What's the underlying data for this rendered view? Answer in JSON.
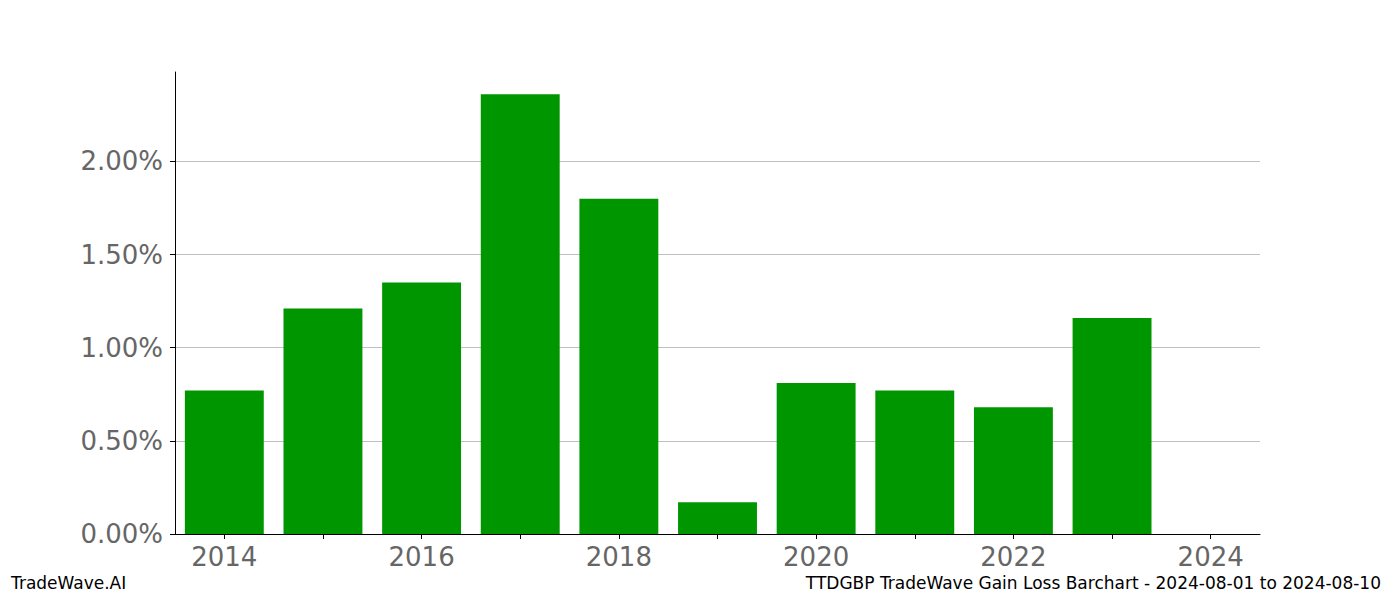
{
  "chart_data": {
    "type": "bar",
    "title": "TTDGBP TradeWave Gain Loss Barchart - 2024-08-01 to 2024-08-10",
    "annotations": [
      "TradeWave.AI"
    ],
    "categories": [
      "2014",
      null,
      "2016",
      null,
      "2018",
      null,
      "2020",
      null,
      "2022",
      null,
      "2024"
    ],
    "values": [
      0.77,
      1.21,
      1.35,
      2.36,
      1.8,
      0.17,
      0.81,
      0.77,
      0.68,
      1.16,
      null
    ],
    "color": "#009600",
    "ylim": [
      0,
      2.48
    ],
    "yticks": [
      {
        "value": 0,
        "label": "0.00%"
      },
      {
        "value": 0.5,
        "label": "0.50%"
      },
      {
        "value": 1,
        "label": "1.00%"
      },
      {
        "value": 1.5,
        "label": "1.50%"
      },
      {
        "value": 2,
        "label": "2.00%"
      }
    ],
    "grid": true
  }
}
